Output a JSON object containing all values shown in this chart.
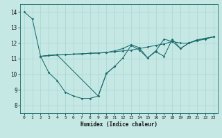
{
  "xlabel": "Humidex (Indice chaleur)",
  "xlim": [
    -0.5,
    23.5
  ],
  "ylim": [
    7.5,
    14.5
  ],
  "yticks": [
    8,
    9,
    10,
    11,
    12,
    13,
    14
  ],
  "xticks": [
    0,
    1,
    2,
    3,
    4,
    5,
    6,
    7,
    8,
    9,
    10,
    11,
    12,
    13,
    14,
    15,
    16,
    17,
    18,
    19,
    20,
    21,
    22,
    23
  ],
  "bg_color": "#c5e8e5",
  "line_color": "#1a6b6b",
  "grid_color": "#a8d4d0",
  "series": [
    {
      "x": [
        0,
        1,
        2,
        3,
        4,
        5,
        6,
        7,
        8,
        9,
        10,
        11,
        12,
        13,
        14,
        15,
        16,
        17,
        18,
        19,
        20,
        21,
        22,
        23
      ],
      "y": [
        14.0,
        13.55,
        11.15,
        10.1,
        9.6,
        8.85,
        8.6,
        8.45,
        8.45,
        8.6,
        10.05,
        10.5,
        null,
        null,
        null,
        null,
        null,
        null,
        null,
        null,
        null,
        null,
        null,
        null
      ]
    },
    {
      "x": [
        2,
        3,
        4,
        5,
        6,
        7,
        8,
        9,
        10,
        11,
        12,
        13,
        14,
        15,
        16,
        17,
        18,
        19,
        20,
        21,
        22,
        23
      ],
      "y": [
        11.15,
        11.2,
        11.25,
        11.25,
        11.3,
        11.3,
        11.35,
        11.35,
        11.4,
        11.45,
        11.5,
        11.55,
        11.65,
        11.75,
        11.85,
        11.95,
        12.1,
        12.0,
        12.0,
        12.2,
        12.3,
        12.4
      ]
    },
    {
      "x": [
        2,
        3,
        4,
        9,
        10,
        11,
        12,
        13,
        14,
        15,
        16,
        17,
        18,
        19,
        20,
        21,
        22,
        23
      ],
      "y": [
        11.15,
        11.2,
        11.25,
        8.6,
        10.05,
        10.5,
        11.05,
        11.85,
        11.55,
        11.05,
        11.45,
        11.15,
        12.25,
        11.65,
        12.0,
        12.15,
        12.25,
        12.4
      ]
    },
    {
      "x": [
        2,
        3,
        10,
        11,
        12,
        13,
        14,
        15,
        16,
        17,
        18,
        19,
        20,
        21,
        22,
        23
      ],
      "y": [
        11.15,
        11.2,
        11.4,
        11.5,
        11.65,
        11.9,
        11.7,
        11.05,
        11.5,
        12.25,
        12.1,
        11.65,
        12.0,
        12.2,
        12.3,
        12.4
      ]
    }
  ]
}
